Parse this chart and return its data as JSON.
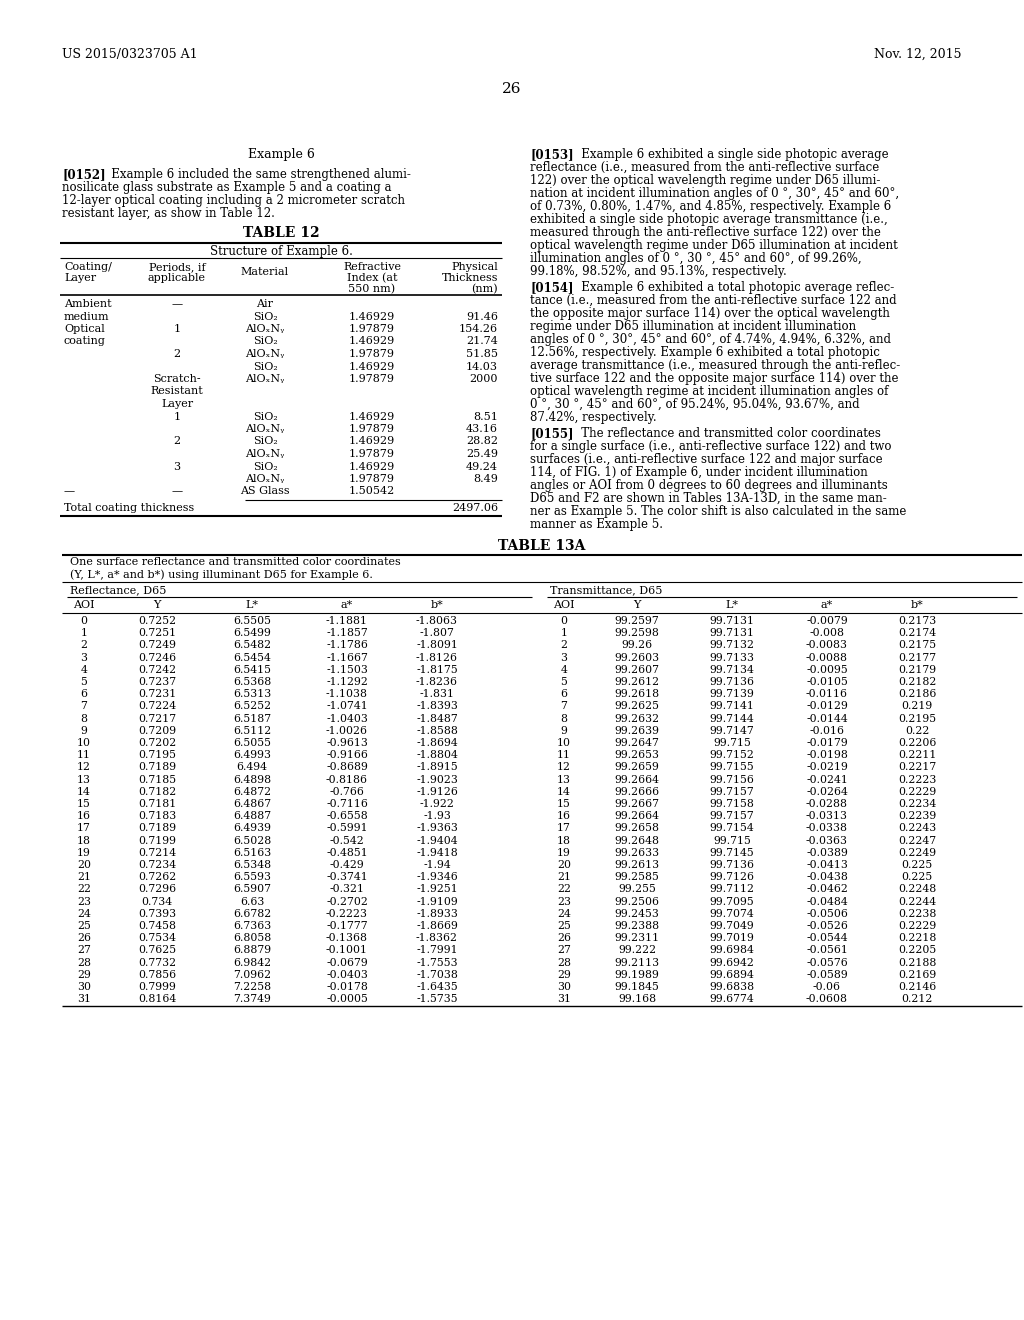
{
  "header_left": "US 2015/0323705 A1",
  "header_right": "Nov. 12, 2015",
  "page_number": "26",
  "example_title": "Example 6",
  "table12_title": "TABLE 12",
  "table12_subtitle": "Structure of Example 6.",
  "table13a_title": "TABLE 13A",
  "table13a_subtitle1": "One surface reflectance and transmitted color coordinates",
  "table13a_subtitle2": "(Y, L*, a* and b*) using illuminant D65 for Example 6.",
  "para_0152_lines": [
    "[0152]   Example 6 included the same strengthened alumi-",
    "nosilicate glass substrate as Example 5 and a coating a",
    "12-layer optical coating including a 2 micrometer scratch",
    "resistant layer, as show in Table 12."
  ],
  "para_0153_lines": [
    "[0153]   Example 6 exhibited a single side photopic average",
    "reflectance (i.e., measured from the anti-reflective surface",
    "122) over the optical wavelength regime under D65 illumi-",
    "nation at incident illumination angles of 0 °, 30°, 45° and 60°,",
    "of 0.73%, 0.80%, 1.47%, and 4.85%, respectively. Example 6",
    "exhibited a single side photopic average transmittance (i.e.,",
    "measured through the anti-reflective surface 122) over the",
    "optical wavelength regime under D65 illumination at incident",
    "illumination angles of 0 °, 30 °, 45° and 60°, of 99.26%,",
    "99.18%, 98.52%, and 95.13%, respectively."
  ],
  "para_0154_lines": [
    "[0154]   Example 6 exhibited a total photopic average reflec-",
    "tance (i.e., measured from the anti-reflective surface 122 and",
    "the opposite major surface 114) over the optical wavelength",
    "regime under D65 illumination at incident illumination",
    "angles of 0 °, 30°, 45° and 60°, of 4.74%, 4.94%, 6.32%, and",
    "12.56%, respectively. Example 6 exhibited a total photopic",
    "average transmittance (i.e., measured through the anti-reflec-",
    "tive surface 122 and the opposite major surface 114) over the",
    "optical wavelength regime at incident illumination angles of",
    "0 °, 30 °, 45° and 60°, of 95.24%, 95.04%, 93.67%, and",
    "87.42%, respectively."
  ],
  "para_0155_lines": [
    "[0155]   The reflectance and transmitted color coordinates",
    "for a single surface (i.e., anti-reflective surface 122) and two",
    "surfaces (i.e., anti-reflective surface 122 and major surface",
    "114, of FIG. 1) of Example 6, under incident illumination",
    "angles or AOI from 0 degrees to 60 degrees and illuminants",
    "D65 and F2 are shown in Tables 13A-13D, in the same man-",
    "ner as Example 5. The color shift is also calculated in the same",
    "manner as Example 5."
  ],
  "table13a_data": [
    [
      0,
      0.7252,
      6.5505,
      -1.1881,
      -1.8063,
      0,
      99.2597,
      99.7131,
      -0.0079,
      0.2173
    ],
    [
      1,
      0.7251,
      6.5499,
      -1.1857,
      -1.807,
      1,
      99.2598,
      99.7131,
      -0.008,
      0.2174
    ],
    [
      2,
      0.7249,
      6.5482,
      -1.1786,
      -1.8091,
      2,
      99.26,
      99.7132,
      -0.0083,
      0.2175
    ],
    [
      3,
      0.7246,
      6.5454,
      -1.1667,
      -1.8126,
      3,
      99.2603,
      99.7133,
      -0.0088,
      0.2177
    ],
    [
      4,
      0.7242,
      6.5415,
      -1.1503,
      -1.8175,
      4,
      99.2607,
      99.7134,
      -0.0095,
      0.2179
    ],
    [
      5,
      0.7237,
      6.5368,
      -1.1292,
      -1.8236,
      5,
      99.2612,
      99.7136,
      -0.0105,
      0.2182
    ],
    [
      6,
      0.7231,
      6.5313,
      -1.1038,
      -1.831,
      6,
      99.2618,
      99.7139,
      -0.0116,
      0.2186
    ],
    [
      7,
      0.7224,
      6.5252,
      -1.0741,
      -1.8393,
      7,
      99.2625,
      99.7141,
      -0.0129,
      0.219
    ],
    [
      8,
      0.7217,
      6.5187,
      -1.0403,
      -1.8487,
      8,
      99.2632,
      99.7144,
      -0.0144,
      0.2195
    ],
    [
      9,
      0.7209,
      6.5112,
      -1.0026,
      -1.8588,
      9,
      99.2639,
      99.7147,
      -0.016,
      0.22
    ],
    [
      10,
      0.7202,
      6.5055,
      -0.9613,
      -1.8694,
      10,
      99.2647,
      99.715,
      -0.0179,
      0.2206
    ],
    [
      11,
      0.7195,
      6.4993,
      -0.9166,
      -1.8804,
      11,
      99.2653,
      99.7152,
      -0.0198,
      0.2211
    ],
    [
      12,
      0.7189,
      6.494,
      -0.8689,
      -1.8915,
      12,
      99.2659,
      99.7155,
      -0.0219,
      0.2217
    ],
    [
      13,
      0.7185,
      6.4898,
      -0.8186,
      -1.9023,
      13,
      99.2664,
      99.7156,
      -0.0241,
      0.2223
    ],
    [
      14,
      0.7182,
      6.4872,
      -0.766,
      -1.9126,
      14,
      99.2666,
      99.7157,
      -0.0264,
      0.2229
    ],
    [
      15,
      0.7181,
      6.4867,
      -0.7116,
      -1.922,
      15,
      99.2667,
      99.7158,
      -0.0288,
      0.2234
    ],
    [
      16,
      0.7183,
      6.4887,
      -0.6558,
      -1.93,
      16,
      99.2664,
      99.7157,
      -0.0313,
      0.2239
    ],
    [
      17,
      0.7189,
      6.4939,
      -0.5991,
      -1.9363,
      17,
      99.2658,
      99.7154,
      -0.0338,
      0.2243
    ],
    [
      18,
      0.7199,
      6.5028,
      -0.542,
      -1.9404,
      18,
      99.2648,
      99.715,
      -0.0363,
      0.2247
    ],
    [
      19,
      0.7214,
      6.5163,
      -0.4851,
      -1.9418,
      19,
      99.2633,
      99.7145,
      -0.0389,
      0.2249
    ],
    [
      20,
      0.7234,
      6.5348,
      -0.429,
      -1.94,
      20,
      99.2613,
      99.7136,
      -0.0413,
      0.225
    ],
    [
      21,
      0.7262,
      6.5593,
      -0.3741,
      -1.9346,
      21,
      99.2585,
      99.7126,
      -0.0438,
      0.225
    ],
    [
      22,
      0.7296,
      6.5907,
      -0.321,
      -1.9251,
      22,
      99.255,
      99.7112,
      -0.0462,
      0.2248
    ],
    [
      23,
      0.734,
      6.63,
      -0.2702,
      -1.9109,
      23,
      99.2506,
      99.7095,
      -0.0484,
      0.2244
    ],
    [
      24,
      0.7393,
      6.6782,
      -0.2223,
      -1.8933,
      24,
      99.2453,
      99.7074,
      -0.0506,
      0.2238
    ],
    [
      25,
      0.7458,
      6.7363,
      -0.1777,
      -1.8669,
      25,
      99.2388,
      99.7049,
      -0.0526,
      0.2229
    ],
    [
      26,
      0.7534,
      6.8058,
      -0.1368,
      -1.8362,
      26,
      99.2311,
      99.7019,
      -0.0544,
      0.2218
    ],
    [
      27,
      0.7625,
      6.8879,
      -0.1001,
      -1.7991,
      27,
      99.222,
      99.6984,
      -0.0561,
      0.2205
    ],
    [
      28,
      0.7732,
      6.9842,
      -0.0679,
      -1.7553,
      28,
      99.2113,
      99.6942,
      -0.0576,
      0.2188
    ],
    [
      29,
      0.7856,
      7.0962,
      -0.0403,
      -1.7038,
      29,
      99.1989,
      99.6894,
      -0.0589,
      0.2169
    ],
    [
      30,
      0.7999,
      7.2258,
      -0.0178,
      -1.6435,
      30,
      99.1845,
      99.6838,
      -0.06,
      0.2146
    ],
    [
      31,
      0.8164,
      7.3749,
      -0.0005,
      -1.5735,
      31,
      99.168,
      99.6774,
      -0.0608,
      0.212
    ]
  ]
}
